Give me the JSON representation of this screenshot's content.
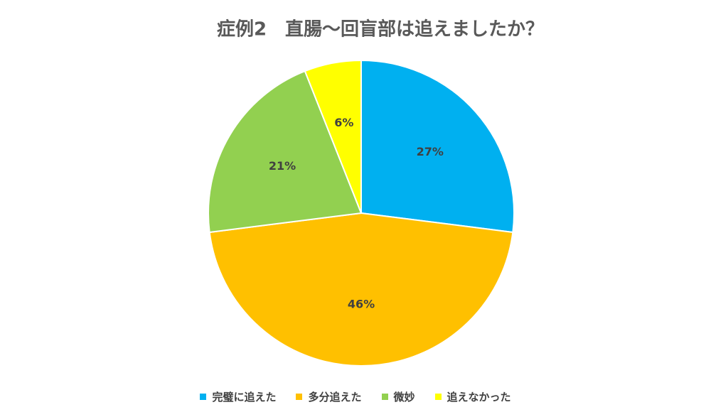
{
  "chart_data": {
    "type": "pie",
    "title": "症例2　直腸〜回盲部は追えましたか？",
    "categories": [
      "完璧に追えた",
      "多分追えた",
      "微妙",
      "追えなかった"
    ],
    "values": [
      27,
      46,
      21,
      6
    ],
    "value_labels": [
      "27%",
      "46%",
      "21%",
      "6%"
    ],
    "colors": [
      "#00b0f0",
      "#ffc000",
      "#92d050",
      "#ffff00"
    ],
    "legend": "bottom"
  }
}
